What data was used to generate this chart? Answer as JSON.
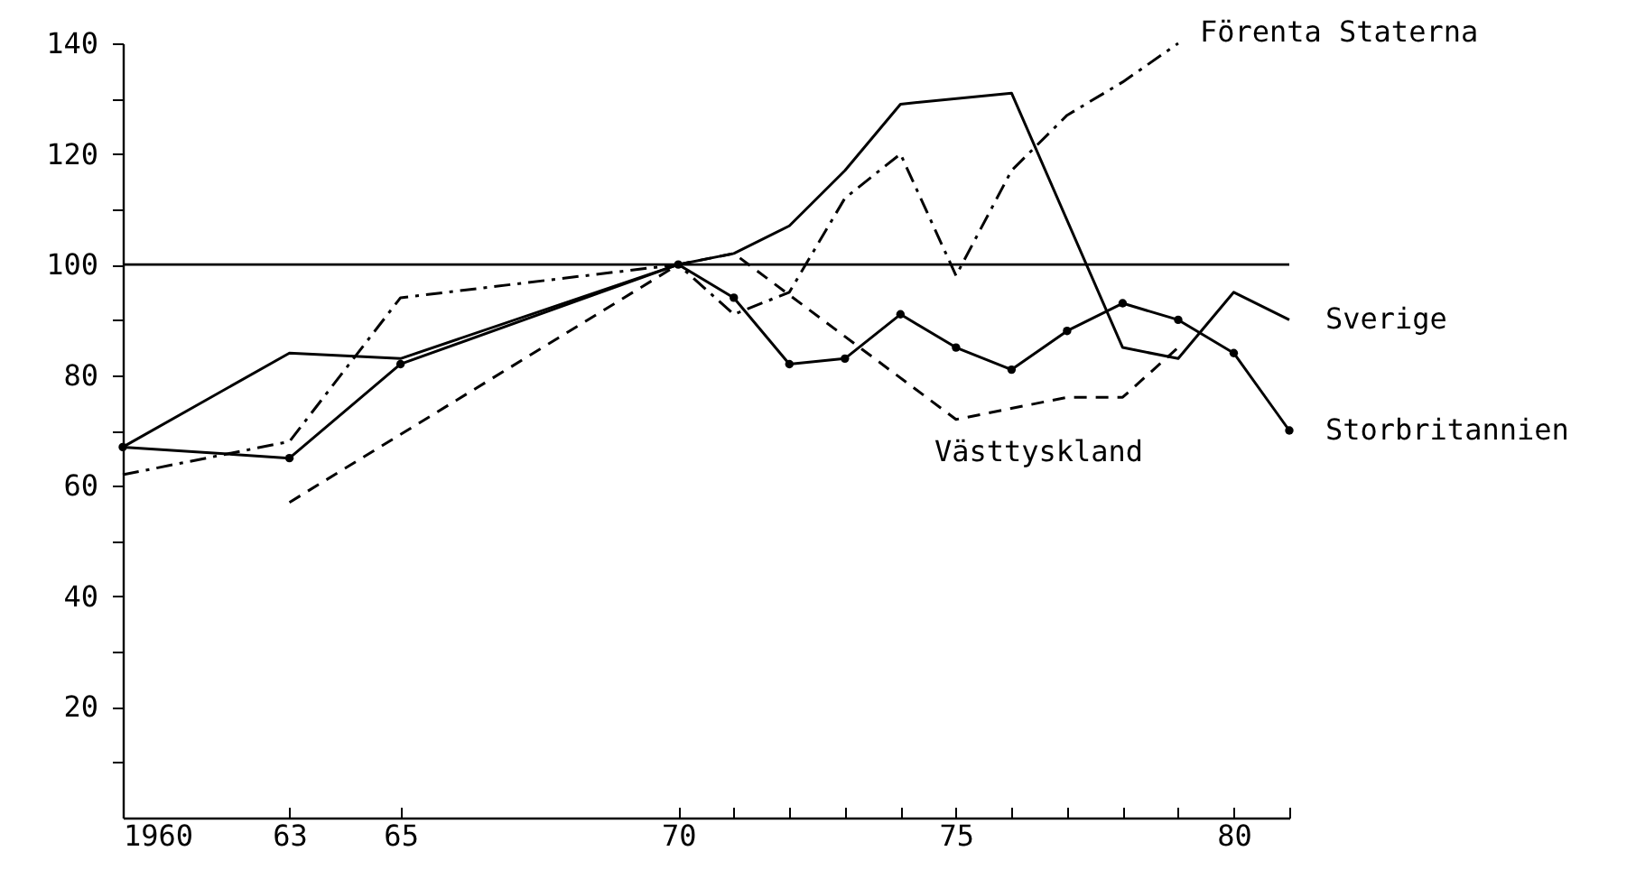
{
  "chart_data": {
    "type": "line",
    "xlim": [
      1960,
      1981
    ],
    "ylim": [
      0,
      140
    ],
    "xticks": [
      1960,
      {
        "value": 1963,
        "label": "63"
      },
      {
        "value": 1965,
        "label": "65"
      },
      {
        "value": 1970,
        "label": "70"
      },
      {
        "value": 1971,
        "label": null
      },
      {
        "value": 1972,
        "label": null
      },
      {
        "value": 1973,
        "label": null
      },
      {
        "value": 1974,
        "label": null
      },
      {
        "value": 1975,
        "label": "75"
      },
      {
        "value": 1976,
        "label": null
      },
      {
        "value": 1977,
        "label": null
      },
      {
        "value": 1978,
        "label": null
      },
      {
        "value": 1979,
        "label": null
      },
      {
        "value": 1980,
        "label": "80"
      },
      {
        "value": 1981,
        "label": null
      }
    ],
    "yticks": [
      {
        "value": 10,
        "label": null
      },
      20,
      {
        "value": 30,
        "label": null
      },
      40,
      {
        "value": 50,
        "label": null
      },
      60,
      {
        "value": 70,
        "label": null
      },
      80,
      {
        "value": 90,
        "label": null
      },
      100,
      {
        "value": 110,
        "label": null
      },
      120,
      {
        "value": 130,
        "label": null
      },
      140
    ],
    "grid": false,
    "ref_lines": [
      {
        "axis": "y",
        "value": 100,
        "color": "#000000"
      }
    ],
    "series": [
      {
        "name": "Förenta Staterna",
        "color": "#000000",
        "line_style": "dashdot",
        "marker": "none",
        "x": [
          1960,
          1963,
          1965,
          1970,
          1971,
          1972,
          1973,
          1974,
          1975,
          1976,
          1977,
          1978,
          1979
        ],
        "values": [
          62,
          68,
          94,
          100,
          91,
          95,
          112,
          120,
          98,
          117,
          127,
          133,
          140
        ]
      },
      {
        "name": "Sverige",
        "color": "#000000",
        "line_style": "solid",
        "marker": "none",
        "x": [
          1960,
          1963,
          1965,
          1970,
          1971,
          1972,
          1973,
          1974,
          1976,
          1978,
          1979,
          1980,
          1981
        ],
        "values": [
          67,
          84,
          83,
          100,
          102,
          107,
          117,
          129,
          131,
          85,
          83,
          95,
          90
        ]
      },
      {
        "name": "Storbritannien",
        "color": "#000000",
        "line_style": "solid",
        "marker": "circle",
        "x": [
          1960,
          1963,
          1965,
          1970,
          1971,
          1972,
          1973,
          1974,
          1975,
          1976,
          1977,
          1978,
          1979,
          1980,
          1981
        ],
        "values": [
          67,
          65,
          82,
          100,
          94,
          82,
          83,
          91,
          85,
          81,
          88,
          93,
          90,
          84,
          70
        ]
      },
      {
        "name": "Västtyskland",
        "color": "#000000",
        "line_style": "dashed",
        "marker": "none",
        "x": [
          1963,
          1970,
          1971,
          1975,
          1977,
          1978,
          1979
        ],
        "values": [
          57,
          100,
          102,
          72,
          76,
          76,
          85
        ]
      }
    ]
  }
}
